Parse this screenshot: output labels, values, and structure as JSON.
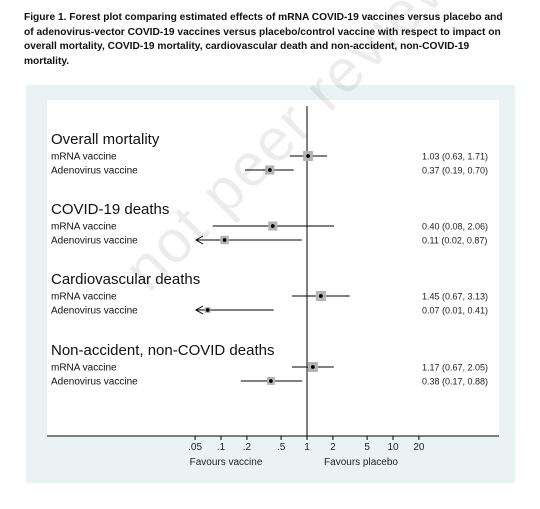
{
  "caption_lines": [
    "Figure 1. Forest plot comparing estimated effects of mRNA COVID-19 vaccines versus placebo and",
    "of adenovirus-vector COVID-19 vaccines versus placebo/control vaccine with respect to impact on",
    "overall mortality, COVID-19 mortality, cardiovascular death and non-accident, non-COVID-19",
    "mortality."
  ],
  "watermark": "not peer reviewed",
  "chart_data": {
    "type": "forest",
    "scale": "log",
    "reference_line": 1,
    "xlim": [
      0.03,
      30
    ],
    "x_ticks": [
      0.05,
      0.1,
      0.2,
      0.5,
      1,
      2,
      5,
      10,
      20
    ],
    "x_tick_labels": [
      ".05",
      ".1",
      ".2",
      ".5",
      "1",
      "2",
      "5",
      "10",
      "20"
    ],
    "x_side_labels": {
      "left": "Favours vaccine",
      "right": "Favours placebo"
    },
    "colors": {
      "marker_box": "#b4b4b4",
      "marker_dot": "#000000",
      "line": "#000000",
      "panel_bg": "#eaf2f3",
      "plot_bg": "#ffffff"
    },
    "groups": [
      {
        "title": "Overall mortality",
        "rows": [
          {
            "label": "mRNA vaccine",
            "estimate": 1.03,
            "lower": 0.63,
            "upper": 1.71,
            "weight": 1.0,
            "ci_text": "1.03 (0.63, 1.71)",
            "truncated_lower": false
          },
          {
            "label": "Adenovirus vaccine",
            "estimate": 0.37,
            "lower": 0.19,
            "upper": 0.7,
            "weight": 0.85,
            "ci_text": "0.37 (0.19, 0.70)",
            "truncated_lower": false
          }
        ]
      },
      {
        "title": "COVID-19 deaths",
        "rows": [
          {
            "label": "mRNA vaccine",
            "estimate": 0.4,
            "lower": 0.08,
            "upper": 2.06,
            "weight": 0.85,
            "ci_text": "0.40 (0.08, 2.06)",
            "truncated_lower": false
          },
          {
            "label": "Adenovirus vaccine",
            "estimate": 0.11,
            "lower": 0.02,
            "upper": 0.87,
            "weight": 0.75,
            "ci_text": "0.11 (0.02, 0.87)",
            "truncated_lower": true
          }
        ]
      },
      {
        "title": "Cardiovascular deaths",
        "rows": [
          {
            "label": "mRNA vaccine",
            "estimate": 1.45,
            "lower": 0.67,
            "upper": 3.13,
            "weight": 1.0,
            "ci_text": "1.45 (0.67, 3.13)",
            "truncated_lower": false
          },
          {
            "label": "Adenovirus vaccine",
            "estimate": 0.07,
            "lower": 0.01,
            "upper": 0.41,
            "weight": 0.3,
            "ci_text": "0.07 (0.01, 0.41)",
            "truncated_lower": true
          }
        ]
      },
      {
        "title": "Non-accident, non-COVID deaths",
        "rows": [
          {
            "label": "mRNA vaccine",
            "estimate": 1.17,
            "lower": 0.67,
            "upper": 2.05,
            "weight": 1.0,
            "ci_text": "1.17 (0.67, 2.05)",
            "truncated_lower": false
          },
          {
            "label": "Adenovirus vaccine",
            "estimate": 0.38,
            "lower": 0.17,
            "upper": 0.88,
            "weight": 0.65,
            "ci_text": "0.38 (0.17, 0.88)",
            "truncated_lower": false
          }
        ]
      }
    ]
  }
}
